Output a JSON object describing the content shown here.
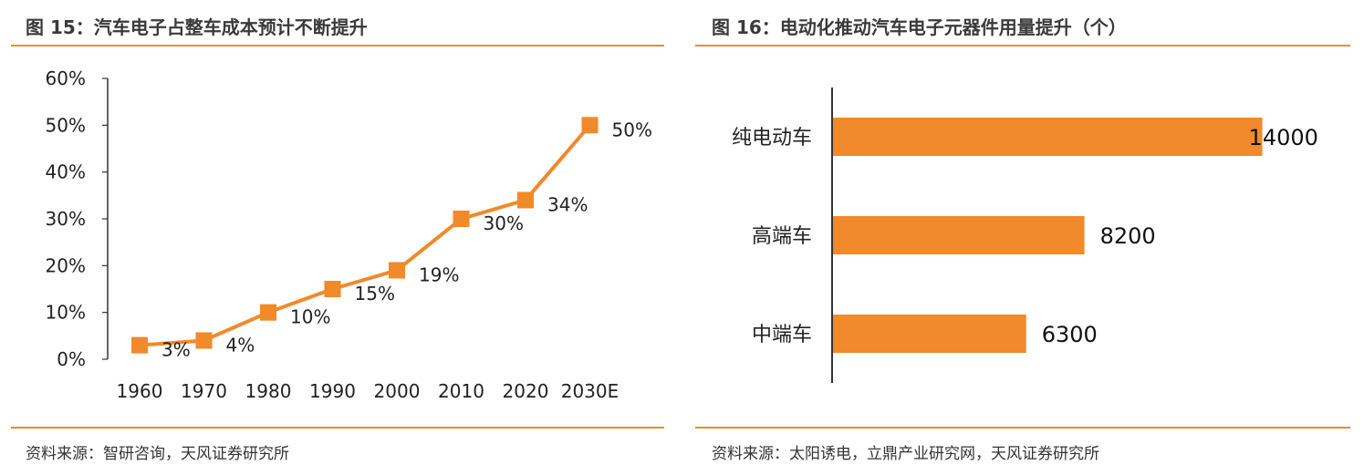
{
  "left": {
    "title": "图 15：汽车电子占整车成本预计不断提升",
    "source": "资料来源：智研咨询，天风证券研究所"
  },
  "right": {
    "title": "图 16：电动化推动汽车电子元器件用量提升（个）",
    "source": "资料来源：太阳诱电，立鼎产业研究网，天风证券研究所"
  },
  "colors": {
    "accent": "#f08a2a",
    "text": "#222222"
  },
  "chart_data": [
    {
      "type": "line",
      "title": "图 15：汽车电子占整车成本预计不断提升",
      "categories": [
        "1960",
        "1970",
        "1980",
        "1990",
        "2000",
        "2010",
        "2020",
        "2030E"
      ],
      "values": [
        3,
        4,
        10,
        15,
        19,
        30,
        34,
        50
      ],
      "data_labels": [
        "3%",
        "4%",
        "10%",
        "15%",
        "19%",
        "30%",
        "34%",
        "50%"
      ],
      "yticks": [
        "0%",
        "10%",
        "20%",
        "30%",
        "40%",
        "50%",
        "60%"
      ],
      "ylim": [
        0,
        60
      ],
      "marker": "square",
      "grid": false
    },
    {
      "type": "bar",
      "orientation": "horizontal",
      "title": "图 16：电动化推动汽车电子元器件用量提升（个）",
      "categories": [
        "纯电动车",
        "高端车",
        "中端车"
      ],
      "values": [
        14000,
        8200,
        6300
      ],
      "data_labels": [
        "14000",
        "8200",
        "6300"
      ],
      "xlim": [
        0,
        14400
      ],
      "grid": false
    }
  ]
}
